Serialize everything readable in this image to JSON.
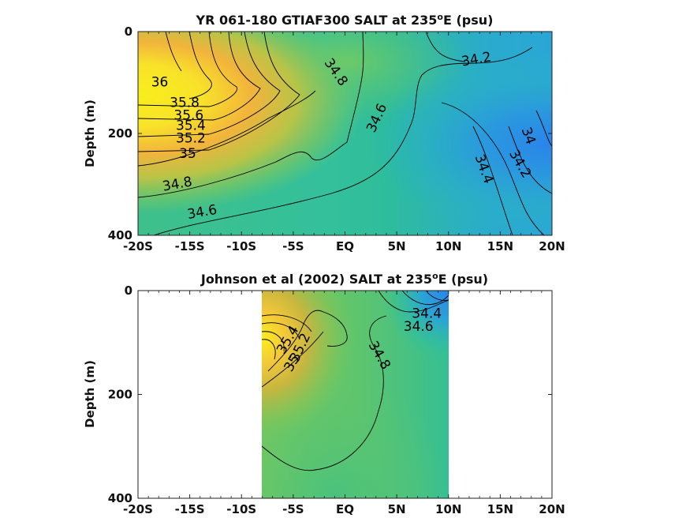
{
  "figure": {
    "colors": {
      "high": "#f5f01e",
      "orange": "#f6b53a",
      "mid_green": "#7cc85e",
      "teal": "#2ebd9b",
      "low_blue": "#2a8ee8"
    }
  },
  "chart_data": [
    {
      "type": "heatmap",
      "title": "YR 061-180 GTIAF300 SALT at 235",
      "title_superscript": "o",
      "title_suffix": "E (psu)",
      "xlabel": "",
      "ylabel": "Depth (m)",
      "xlim": [
        -20,
        20
      ],
      "ylim": [
        400,
        0
      ],
      "x_ticks": [
        -20,
        -15,
        -10,
        -5,
        0,
        5,
        10,
        15,
        20
      ],
      "x_tick_labels": [
        "-20S",
        "-15S",
        "-10S",
        "-5S",
        "EQ",
        "5N",
        "10N",
        "15N",
        "20N"
      ],
      "y_ticks": [
        0,
        200,
        400
      ],
      "y_tick_labels": [
        "0",
        "200",
        "400"
      ],
      "data_extent": [
        -20,
        20
      ],
      "contour_labels": [
        {
          "text": "36",
          "x": -17.9,
          "y": 100,
          "rot": 0
        },
        {
          "text": "35.8",
          "x": -15.5,
          "y": 140,
          "rot": 0
        },
        {
          "text": "35.6",
          "x": -15.1,
          "y": 165,
          "rot": 0
        },
        {
          "text": "35.4",
          "x": -14.9,
          "y": 185,
          "rot": 0
        },
        {
          "text": "35.2",
          "x": -14.9,
          "y": 210,
          "rot": 0
        },
        {
          "text": "35",
          "x": -15.2,
          "y": 240,
          "rot": 0
        },
        {
          "text": "34.8",
          "x": -16.2,
          "y": 300,
          "rot": -10
        },
        {
          "text": "34.6",
          "x": -13.8,
          "y": 355,
          "rot": -10
        },
        {
          "text": "34.8",
          "x": -0.9,
          "y": 80,
          "rot": 55
        },
        {
          "text": "34.6",
          "x": 3.1,
          "y": 170,
          "rot": -65
        },
        {
          "text": "34.2",
          "x": 12.7,
          "y": 55,
          "rot": -10
        },
        {
          "text": "34",
          "x": 17.7,
          "y": 205,
          "rot": 70
        },
        {
          "text": "34.2",
          "x": 16.9,
          "y": 260,
          "rot": 60
        },
        {
          "text": "34.4",
          "x": 13.4,
          "y": 270,
          "rot": 70
        }
      ]
    },
    {
      "type": "heatmap",
      "title": "Johnson et al (2002) SALT at 235",
      "title_superscript": "o",
      "title_suffix": "E (psu)",
      "xlabel": "",
      "ylabel": "Depth (m)",
      "xlim": [
        -20,
        20
      ],
      "ylim": [
        400,
        0
      ],
      "x_ticks": [
        -20,
        -15,
        -10,
        -5,
        0,
        5,
        10,
        15,
        20
      ],
      "x_tick_labels": [
        "-20S",
        "-15S",
        "-10S",
        "-5S",
        "EQ",
        "5N",
        "10N",
        "15N",
        "20N"
      ],
      "y_ticks": [
        0,
        200,
        400
      ],
      "y_tick_labels": [
        "0",
        "200",
        "400"
      ],
      "data_extent": [
        -8,
        10
      ],
      "contour_labels": [
        {
          "text": "34.4",
          "x": 7.9,
          "y": 45,
          "rot": 0
        },
        {
          "text": "34.6",
          "x": 7.1,
          "y": 70,
          "rot": 0
        },
        {
          "text": "34.8",
          "x": 3.3,
          "y": 125,
          "rot": 60
        },
        {
          "text": "35.2",
          "x": -4.3,
          "y": 110,
          "rot": -65
        },
        {
          "text": "35",
          "x": -5.1,
          "y": 140,
          "rot": -60
        },
        {
          "text": "35.4",
          "x": -5.5,
          "y": 95,
          "rot": -60
        }
      ]
    }
  ]
}
